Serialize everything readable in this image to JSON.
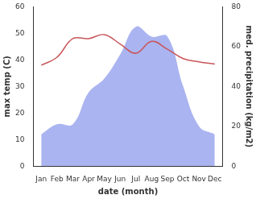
{
  "chart_data": {
    "type": "line",
    "x_label": "date (month)",
    "y_label": "max temp (C)",
    "y2_label": "med. precipitation (kg/m2)",
    "categories": [
      "Jan",
      "Feb",
      "Mar",
      "Apr",
      "May",
      "Jun",
      "Jul",
      "Aug",
      "Sep",
      "Oct",
      "Nov",
      "Dec"
    ],
    "series": [
      {
        "name": "med. precipitation",
        "type": "area",
        "axis": "y2",
        "color": "#aab4f0",
        "values": [
          16,
          21,
          21,
          37,
          44,
          56,
          70,
          65,
          65,
          40,
          20,
          16
        ]
      },
      {
        "name": "max temp",
        "type": "line",
        "color": "#c8555a",
        "values": [
          38,
          41,
          48,
          48,
          49.5,
          46,
          42.5,
          47,
          44,
          40.5,
          39.3,
          38.4
        ]
      }
    ],
    "ylim": [
      0,
      60
    ],
    "yticks": [
      0,
      10,
      20,
      30,
      40,
      50,
      60
    ],
    "y2lim": [
      0,
      80
    ],
    "y2ticks": [
      0,
      20,
      40,
      60,
      80
    ],
    "grid": false
  }
}
